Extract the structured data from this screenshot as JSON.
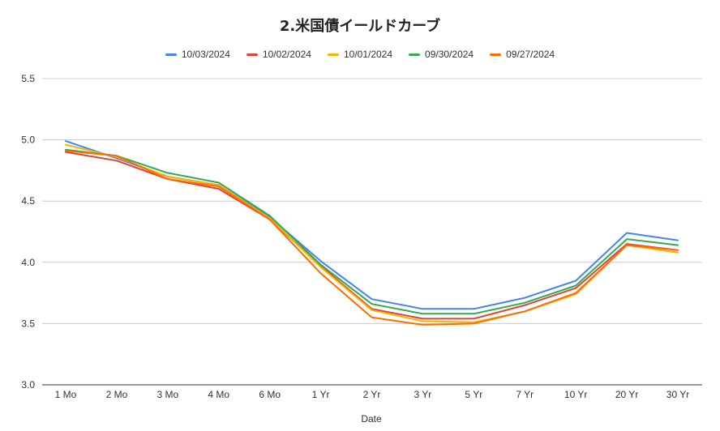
{
  "chart_data": {
    "type": "line",
    "title": "2.米国債イールドカーブ",
    "xlabel": "Date",
    "ylabel": "",
    "categories": [
      "1 Mo",
      "2 Mo",
      "3 Mo",
      "4 Mo",
      "6 Mo",
      "1 Yr",
      "2 Yr",
      "3 Yr",
      "5 Yr",
      "7 Yr",
      "10 Yr",
      "20 Yr",
      "30 Yr"
    ],
    "ylim": [
      3.0,
      5.5
    ],
    "yticks": [
      "3.0",
      "3.5",
      "4.0",
      "4.5",
      "5.0",
      "5.5"
    ],
    "grid": true,
    "legend_position": "top",
    "series": [
      {
        "name": "10/03/2024",
        "color": "#4285F4",
        "values": [
          4.99,
          4.85,
          4.7,
          4.63,
          4.37,
          4.01,
          3.7,
          3.62,
          3.62,
          3.71,
          3.85,
          4.24,
          4.18
        ]
      },
      {
        "name": "10/02/2024",
        "color": "#DB4437",
        "values": [
          4.9,
          4.83,
          4.68,
          4.6,
          4.35,
          3.97,
          3.62,
          3.54,
          3.54,
          3.65,
          3.79,
          4.15,
          4.1
        ]
      },
      {
        "name": "10/01/2024",
        "color": "#F4B400",
        "values": [
          4.96,
          4.86,
          4.7,
          4.63,
          4.36,
          3.96,
          3.61,
          3.52,
          3.51,
          3.6,
          3.74,
          4.14,
          4.08
        ]
      },
      {
        "name": "09/30/2024",
        "color": "#34A853",
        "values": [
          4.92,
          4.87,
          4.73,
          4.65,
          4.38,
          3.98,
          3.66,
          3.58,
          3.58,
          3.67,
          3.81,
          4.19,
          4.14
        ]
      },
      {
        "name": "09/27/2024",
        "color": "#FF6D01",
        "values": [
          4.91,
          4.87,
          4.68,
          4.62,
          4.35,
          3.91,
          3.55,
          3.49,
          3.5,
          3.6,
          3.75,
          4.14,
          4.1
        ]
      }
    ]
  }
}
